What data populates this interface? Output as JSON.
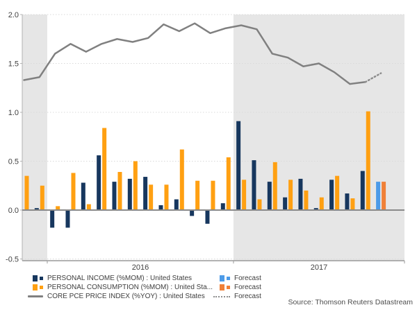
{
  "source_note": "Source: Thomson Reuters Datastream",
  "legend": {
    "left": [
      {
        "label": "PERSONAL INCOME (%MOM) : United States",
        "marker": "bars",
        "color": "#17375e"
      },
      {
        "label": "PERSONAL CONSUMPTION (%MOM) : United Sta...",
        "marker": "bars",
        "color": "#ffa012"
      },
      {
        "label": "CORE PCE PRICE INDEX (%YOY) : United States",
        "marker": "line",
        "color": "#808080"
      }
    ],
    "right": [
      {
        "label": "Forecast",
        "marker": "bars",
        "color": "#4d9be8"
      },
      {
        "label": "Forecast",
        "marker": "bars",
        "color": "#f08038"
      },
      {
        "label": "Forecast",
        "marker": "dotted-line",
        "color": "#8c8c8c"
      }
    ]
  },
  "chart_data": {
    "type": "combo-bar-line",
    "title": "",
    "ylim": [
      -0.5,
      2.0
    ],
    "yticks": [
      2.0,
      1.5,
      1.0,
      0.5,
      0.0,
      -0.5
    ],
    "grid": "horizontal-dotted",
    "x_bands": [
      {
        "year_label": "",
        "start_slot": 0,
        "end_slot": 2,
        "shaded": true
      },
      {
        "year_label": "2016",
        "start_slot": 2,
        "end_slot": 14,
        "shaded": false
      },
      {
        "year_label": "2017",
        "start_slot": 14,
        "end_slot": 24,
        "shaded": true
      }
    ],
    "slots": 24,
    "series": [
      {
        "name": "PERSONAL INCOME (%MOM) : United States",
        "type": "bar",
        "color": "#17375e",
        "values": [
          null,
          0.02,
          -0.18,
          -0.18,
          0.28,
          0.56,
          0.29,
          0.32,
          0.34,
          0.05,
          0.11,
          -0.06,
          -0.14,
          0.07,
          0.91,
          0.51,
          0.29,
          0.13,
          0.32,
          0.02,
          0.31,
          0.17,
          0.4,
          null
        ]
      },
      {
        "name": "PERSONAL CONSUMPTION (%MOM) : United Sta...",
        "type": "bar",
        "color": "#ffa012",
        "values": [
          0.35,
          0.25,
          0.04,
          0.38,
          0.06,
          0.84,
          0.39,
          0.5,
          0.26,
          0.26,
          0.62,
          0.3,
          0.3,
          0.54,
          0.31,
          0.11,
          0.49,
          0.31,
          0.2,
          0.13,
          0.35,
          0.12,
          1.01,
          null
        ]
      },
      {
        "name": "CORE PCE PRICE INDEX (%YOY) : United States",
        "type": "line",
        "color": "#808080",
        "values": [
          1.33,
          1.36,
          1.6,
          1.7,
          1.62,
          1.7,
          1.75,
          1.72,
          1.76,
          1.9,
          1.83,
          1.91,
          1.81,
          1.86,
          1.89,
          1.85,
          1.6,
          1.56,
          1.47,
          1.5,
          1.41,
          1.29,
          1.31,
          null
        ]
      }
    ],
    "forecast": {
      "slot": 23,
      "income_value": 0.29,
      "consumption_value": 0.29,
      "core_pce_value": 1.4,
      "income_color": "#4d9be8",
      "consumption_color": "#f08038",
      "line_color": "#8c8c8c"
    },
    "colors": {
      "band_shaded": "#e6e6e6",
      "gridline": "#d9d9d9",
      "zero_line": "#8a8a8a",
      "axis": "#b3b3b3",
      "x_axis": "#999999",
      "tick_text": "#404040"
    }
  }
}
